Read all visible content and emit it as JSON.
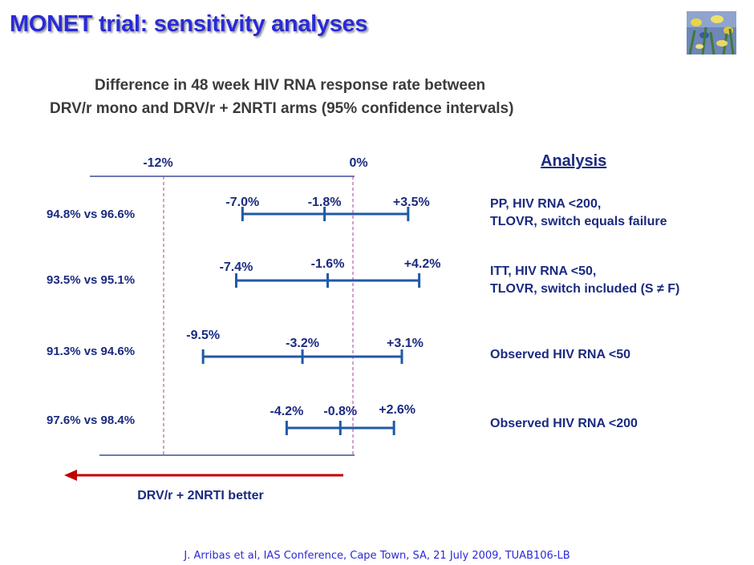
{
  "slide": {
    "title": "MONET trial: sensitivity analyses",
    "subtitle_line1": "Difference in 48 week HIV RNA response rate between",
    "subtitle_line2": "DRV/r mono and DRV/r + 2NRTI arms (95% confidence intervals)",
    "footnote": "J. Arribas et al, IAS Conference, Cape Town, SA, 21 July 2009, TUAB106-LB",
    "picture_icon": "irises-painting-thumbnail"
  },
  "chart_data": {
    "type": "forest",
    "reference_lines": [
      {
        "value": -12,
        "label": "-12%",
        "style": "dashed",
        "color": "#a0468c"
      },
      {
        "value": 0,
        "label": "0%",
        "style": "dashed",
        "color": "#a0468c"
      }
    ],
    "analysis_heading": "Analysis",
    "rows": [
      {
        "comparison": "94.8% vs 96.6%",
        "analysis_line1": "PP, HIV RNA <200,",
        "analysis_line2": "TLOVR, switch equals failure",
        "lower": -7.0,
        "estimate": -1.8,
        "upper": 3.5,
        "lower_label": "-7.0%",
        "estimate_label": "-1.8%",
        "upper_label": "+3.5%"
      },
      {
        "comparison": "93.5% vs 95.1%",
        "analysis_line1": "ITT, HIV RNA <50,",
        "analysis_line2": "TLOVR, switch included (S ≠ F)",
        "lower": -7.4,
        "estimate": -1.6,
        "upper": 4.2,
        "lower_label": "-7.4%",
        "estimate_label": "-1.6%",
        "upper_label": "+4.2%"
      },
      {
        "comparison": "91.3% vs 94.6%",
        "analysis_line1": "Observed HIV RNA <50",
        "analysis_line2": "",
        "lower": -9.5,
        "estimate": -3.2,
        "upper": 3.1,
        "lower_label": "-9.5%",
        "estimate_label": "-3.2%",
        "upper_label": "+3.1%"
      },
      {
        "comparison": "97.6% vs 98.4%",
        "analysis_line1": "Observed HIV RNA <200",
        "analysis_line2": "",
        "lower": -4.2,
        "estimate": -0.8,
        "upper": 2.6,
        "lower_label": "-4.2%",
        "estimate_label": "-0.8%",
        "upper_label": "+2.6%"
      }
    ],
    "arrow_label": "DRV/r + 2NRTI better",
    "colors": {
      "interval": "#1f5aa6",
      "reference": "#a0468c",
      "arrow": "#c00000",
      "text": "#1a2a80"
    }
  }
}
